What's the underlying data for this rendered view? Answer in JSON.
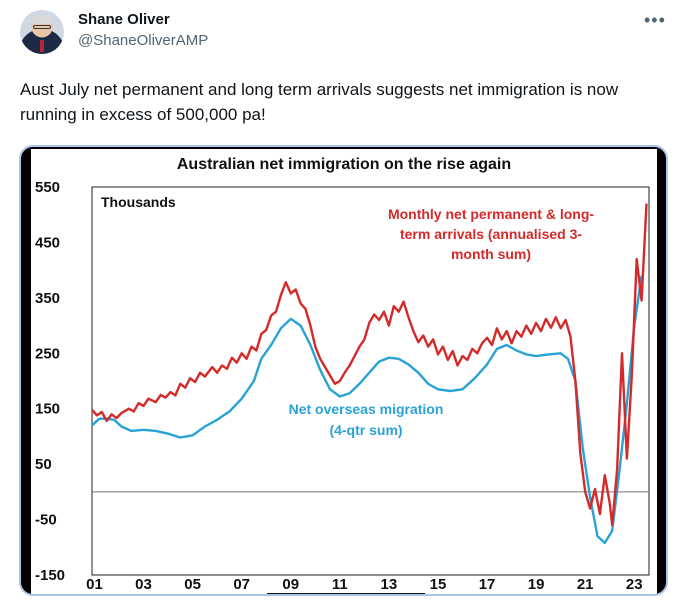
{
  "tweet": {
    "author_name": "Shane Oliver",
    "handle": "@ShaneOliverAMP",
    "more_icon": "more-horizontal-icon",
    "text": "Aust July net permanent and long term arrivals suggests net immigration is now running in excess of 500,000 pa!"
  },
  "chart_data": {
    "type": "line",
    "title": "Australian net immigration on the rise again",
    "units_label": "Thousands",
    "ylim": [
      -150,
      550
    ],
    "y_ticks": [
      550,
      450,
      350,
      250,
      150,
      50,
      -50,
      -150
    ],
    "y_tick_labels": [
      "550",
      "450",
      "350",
      "250",
      "150",
      "50",
      "-50",
      "-150"
    ],
    "x_ticks": [
      2001,
      2003,
      2005,
      2007,
      2009,
      2011,
      2013,
      2015,
      2017,
      2019,
      2021,
      2023
    ],
    "x_tick_labels": [
      "01",
      "03",
      "05",
      "07",
      "09",
      "11",
      "13",
      "15",
      "17",
      "19",
      "21",
      "23"
    ],
    "xlim": [
      2000.9,
      2023.6
    ],
    "zero_line": 0,
    "annotations": {
      "red_lines": [
        "Monthly net permanent & long-",
        "term arrivals (annualised 3-",
        "month sum)"
      ],
      "blue_lines": [
        "Net overseas migration",
        "(4-qtr sum)"
      ]
    },
    "series": [
      {
        "color": "#d42a2a",
        "points": [
          [
            2000.9,
            148
          ],
          [
            2001.1,
            138
          ],
          [
            2001.3,
            144
          ],
          [
            2001.5,
            128
          ],
          [
            2001.7,
            140
          ],
          [
            2001.9,
            133
          ],
          [
            2002.1,
            142
          ],
          [
            2002.4,
            150
          ],
          [
            2002.6,
            145
          ],
          [
            2002.8,
            160
          ],
          [
            2003.0,
            155
          ],
          [
            2003.2,
            168
          ],
          [
            2003.5,
            162
          ],
          [
            2003.7,
            175
          ],
          [
            2003.9,
            170
          ],
          [
            2004.1,
            180
          ],
          [
            2004.3,
            174
          ],
          [
            2004.5,
            195
          ],
          [
            2004.7,
            188
          ],
          [
            2004.9,
            205
          ],
          [
            2005.1,
            198
          ],
          [
            2005.3,
            215
          ],
          [
            2005.5,
            208
          ],
          [
            2005.8,
            225
          ],
          [
            2006.0,
            215
          ],
          [
            2006.2,
            228
          ],
          [
            2006.4,
            222
          ],
          [
            2006.6,
            242
          ],
          [
            2006.8,
            233
          ],
          [
            2007.0,
            250
          ],
          [
            2007.2,
            240
          ],
          [
            2007.4,
            262
          ],
          [
            2007.6,
            255
          ],
          [
            2007.8,
            285
          ],
          [
            2008.0,
            292
          ],
          [
            2008.2,
            318
          ],
          [
            2008.4,
            325
          ],
          [
            2008.6,
            355
          ],
          [
            2008.8,
            378
          ],
          [
            2009.0,
            358
          ],
          [
            2009.2,
            365
          ],
          [
            2009.4,
            340
          ],
          [
            2009.6,
            330
          ],
          [
            2009.8,
            300
          ],
          [
            2010.0,
            262
          ],
          [
            2010.2,
            240
          ],
          [
            2010.4,
            225
          ],
          [
            2010.6,
            210
          ],
          [
            2010.8,
            195
          ],
          [
            2011.0,
            200
          ],
          [
            2011.2,
            215
          ],
          [
            2011.4,
            228
          ],
          [
            2011.6,
            245
          ],
          [
            2011.8,
            262
          ],
          [
            2012.0,
            275
          ],
          [
            2012.2,
            305
          ],
          [
            2012.4,
            320
          ],
          [
            2012.6,
            310
          ],
          [
            2012.8,
            325
          ],
          [
            2013.0,
            300
          ],
          [
            2013.2,
            335
          ],
          [
            2013.4,
            325
          ],
          [
            2013.6,
            343
          ],
          [
            2013.8,
            315
          ],
          [
            2014.0,
            290
          ],
          [
            2014.2,
            270
          ],
          [
            2014.4,
            282
          ],
          [
            2014.6,
            262
          ],
          [
            2014.8,
            275
          ],
          [
            2015.0,
            248
          ],
          [
            2015.2,
            262
          ],
          [
            2015.4,
            238
          ],
          [
            2015.6,
            254
          ],
          [
            2015.8,
            228
          ],
          [
            2016.0,
            245
          ],
          [
            2016.2,
            238
          ],
          [
            2016.4,
            258
          ],
          [
            2016.6,
            250
          ],
          [
            2016.8,
            268
          ],
          [
            2017.0,
            278
          ],
          [
            2017.2,
            265
          ],
          [
            2017.4,
            295
          ],
          [
            2017.6,
            275
          ],
          [
            2017.8,
            290
          ],
          [
            2018.0,
            268
          ],
          [
            2018.2,
            290
          ],
          [
            2018.4,
            280
          ],
          [
            2018.6,
            300
          ],
          [
            2018.8,
            285
          ],
          [
            2019.0,
            305
          ],
          [
            2019.2,
            290
          ],
          [
            2019.4,
            312
          ],
          [
            2019.6,
            296
          ],
          [
            2019.8,
            315
          ],
          [
            2020.0,
            295
          ],
          [
            2020.2,
            310
          ],
          [
            2020.4,
            280
          ],
          [
            2020.6,
            200
          ],
          [
            2020.8,
            70
          ],
          [
            2021.0,
            0
          ],
          [
            2021.2,
            -30
          ],
          [
            2021.4,
            5
          ],
          [
            2021.6,
            -40
          ],
          [
            2021.8,
            30
          ],
          [
            2022.0,
            -20
          ],
          [
            2022.1,
            -60
          ],
          [
            2022.3,
            40
          ],
          [
            2022.5,
            250
          ],
          [
            2022.7,
            60
          ],
          [
            2022.9,
            210
          ],
          [
            2023.1,
            420
          ],
          [
            2023.3,
            345
          ],
          [
            2023.5,
            520
          ]
        ]
      },
      {
        "color": "#29a3d6",
        "points": [
          [
            2000.9,
            120
          ],
          [
            2001.2,
            132
          ],
          [
            2001.5,
            132
          ],
          [
            2001.8,
            130
          ],
          [
            2002.1,
            118
          ],
          [
            2002.5,
            110
          ],
          [
            2003.0,
            112
          ],
          [
            2003.5,
            110
          ],
          [
            2004.0,
            105
          ],
          [
            2004.5,
            98
          ],
          [
            2005.0,
            102
          ],
          [
            2005.5,
            118
          ],
          [
            2006.0,
            130
          ],
          [
            2006.5,
            145
          ],
          [
            2007.0,
            168
          ],
          [
            2007.5,
            200
          ],
          [
            2007.8,
            240
          ],
          [
            2008.2,
            265
          ],
          [
            2008.6,
            295
          ],
          [
            2009.0,
            312
          ],
          [
            2009.4,
            300
          ],
          [
            2009.8,
            265
          ],
          [
            2010.2,
            220
          ],
          [
            2010.6,
            185
          ],
          [
            2011.0,
            172
          ],
          [
            2011.4,
            178
          ],
          [
            2011.8,
            195
          ],
          [
            2012.2,
            215
          ],
          [
            2012.6,
            235
          ],
          [
            2013.0,
            242
          ],
          [
            2013.4,
            240
          ],
          [
            2013.8,
            230
          ],
          [
            2014.2,
            215
          ],
          [
            2014.6,
            195
          ],
          [
            2015.0,
            185
          ],
          [
            2015.5,
            182
          ],
          [
            2016.0,
            185
          ],
          [
            2016.5,
            205
          ],
          [
            2017.0,
            230
          ],
          [
            2017.4,
            258
          ],
          [
            2017.8,
            265
          ],
          [
            2018.2,
            255
          ],
          [
            2018.6,
            248
          ],
          [
            2019.0,
            245
          ],
          [
            2019.5,
            248
          ],
          [
            2020.0,
            250
          ],
          [
            2020.3,
            240
          ],
          [
            2020.6,
            200
          ],
          [
            2020.9,
            80
          ],
          [
            2021.2,
            -10
          ],
          [
            2021.5,
            -80
          ],
          [
            2021.8,
            -92
          ],
          [
            2022.1,
            -70
          ],
          [
            2022.4,
            40
          ],
          [
            2022.7,
            160
          ],
          [
            2023.0,
            300
          ],
          [
            2023.3,
            390
          ]
        ]
      }
    ]
  }
}
